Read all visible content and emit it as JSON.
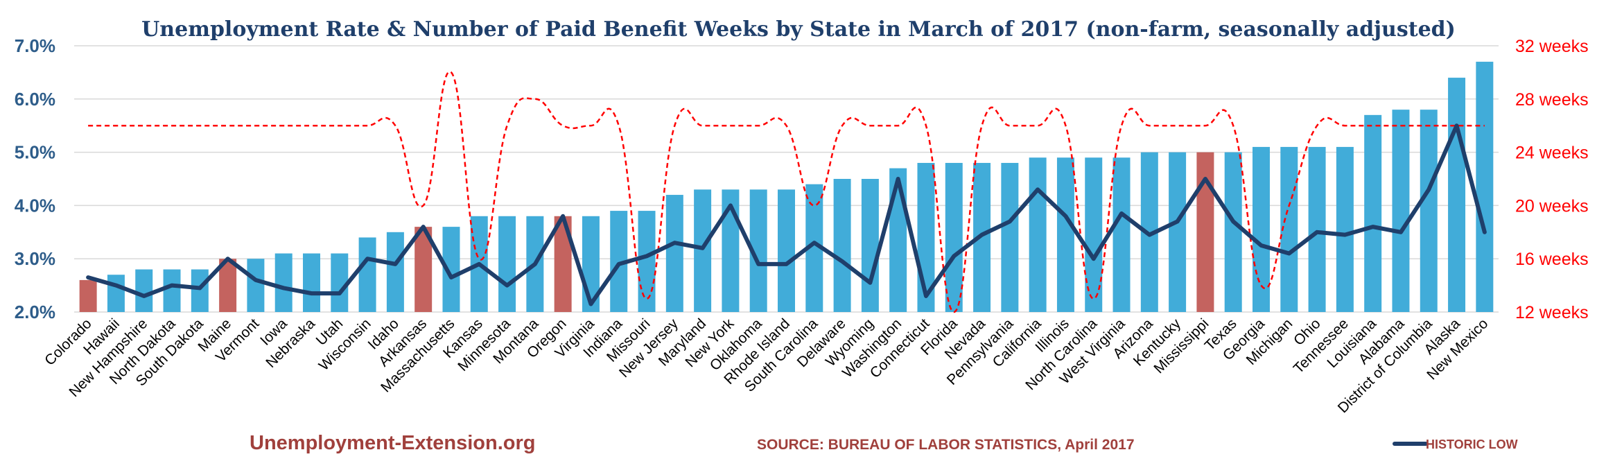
{
  "chart_data": {
    "type": "bar",
    "title": "Unemployment Rate & Number of Paid Benefit Weeks by State in March of 2017 (non-farm, seasonally adjusted)",
    "categories": [
      "Colorado",
      "Hawaii",
      "New Hampshire",
      "North Dakota",
      "South Dakota",
      "Maine",
      "Vermont",
      "Iowa",
      "Nebraska",
      "Utah",
      "Wisconsin",
      "Idaho",
      "Arkansas",
      "Massachusetts",
      "Kansas",
      "Minnesota",
      "Montana",
      "Oregon",
      "Virginia",
      "Indiana",
      "Missouri",
      "New Jersey",
      "Maryland",
      "New York",
      "Oklahoma",
      "Rhode Island",
      "South Carolina",
      "Delaware",
      "Wyoming",
      "Washington",
      "Connecticut",
      "Florida",
      "Nevada",
      "Pennsylvania",
      "California",
      "Illinois",
      "North Carolina",
      "West Virginia",
      "Arizona",
      "Kentucky",
      "Mississippi",
      "Texas",
      "Georgia",
      "Michigan",
      "Ohio",
      "Tennessee",
      "Louisiana",
      "Alabama",
      "District of Columbia",
      "Alaska",
      "New Mexico"
    ],
    "series": [
      {
        "values": [
          2.6,
          2.7,
          2.8,
          2.8,
          2.8,
          3.0,
          3.0,
          3.1,
          3.1,
          3.1,
          3.4,
          3.5,
          3.6,
          3.6,
          3.8,
          3.8,
          3.8,
          3.8,
          3.8,
          3.9,
          3.9,
          4.2,
          4.3,
          4.3,
          4.3,
          4.3,
          4.4,
          4.5,
          4.5,
          4.7,
          4.8,
          4.8,
          4.8,
          4.8,
          4.9,
          4.9,
          4.9,
          4.9,
          5.0,
          5.0,
          5.0,
          5.0,
          5.1,
          5.1,
          5.1,
          5.1,
          5.7,
          5.8,
          5.8,
          6.4,
          6.7
        ],
        "highlight": [
          true,
          false,
          false,
          false,
          false,
          true,
          false,
          false,
          false,
          false,
          false,
          false,
          true,
          false,
          false,
          false,
          false,
          true,
          false,
          false,
          false,
          false,
          false,
          false,
          false,
          false,
          false,
          false,
          false,
          false,
          false,
          false,
          false,
          false,
          false,
          false,
          false,
          false,
          false,
          false,
          true,
          false,
          false,
          false,
          false,
          false,
          false,
          false,
          false,
          false,
          false
        ],
        "axis": "left"
      },
      {
        "name": "HISTORIC LOW",
        "values": [
          2.65,
          2.5,
          2.3,
          2.5,
          2.45,
          3.0,
          2.6,
          2.45,
          2.35,
          2.35,
          3.0,
          2.9,
          3.6,
          2.65,
          2.9,
          2.5,
          2.9,
          3.8,
          2.15,
          2.9,
          3.05,
          3.3,
          3.2,
          4.0,
          2.9,
          2.9,
          3.3,
          2.95,
          2.55,
          4.5,
          2.3,
          3.05,
          3.45,
          3.7,
          4.3,
          3.8,
          3.0,
          3.85,
          3.45,
          3.7,
          4.5,
          3.7,
          3.25,
          3.1,
          3.5,
          3.45,
          3.6,
          3.5,
          4.3,
          5.5,
          3.5
        ],
        "axis": "left",
        "style": "solid",
        "color": "#1f3f6b"
      },
      {
        "values": [
          26,
          26,
          26,
          26,
          26,
          26,
          26,
          26,
          26,
          26,
          26,
          26,
          20,
          30,
          16,
          26,
          28,
          26,
          26,
          26,
          13,
          26,
          26,
          26,
          26,
          26,
          20,
          26,
          26,
          26,
          26,
          12,
          26,
          26,
          26,
          26,
          13,
          26,
          26,
          26,
          26,
          26,
          14,
          20,
          26,
          26,
          26,
          26,
          26,
          26,
          26
        ],
        "axis": "right",
        "style": "dashed",
        "color": "#ff0000"
      }
    ],
    "left_axis": {
      "ticks": [
        "2.0%",
        "3.0%",
        "4.0%",
        "5.0%",
        "6.0%",
        "7.0%"
      ],
      "ylim": [
        2.0,
        7.0
      ]
    },
    "right_axis": {
      "ticks": [
        "12 weeks",
        "16 weeks",
        "20 weeks",
        "24 weeks",
        "28 weeks",
        "32 weeks"
      ],
      "ylim": [
        12,
        32
      ]
    },
    "grid": true,
    "legend_position": "bottom-right",
    "colors": {
      "bar": "#41acd9",
      "bar_highlight": "#c4635f",
      "historic_low": "#1f3f6b",
      "weeks": "#ff0000",
      "title": "#1f3f6b",
      "left_ticks": "#2e5d8a",
      "right_ticks": "#ff0000",
      "grid": "#d9d9d9"
    }
  },
  "footer": {
    "site": "Unemployment-Extension.org",
    "source": "SOURCE: BUREAU OF LABOR STATISTICS, April 2017",
    "site_color": "#a0403c",
    "source_color": "#a0403c"
  }
}
